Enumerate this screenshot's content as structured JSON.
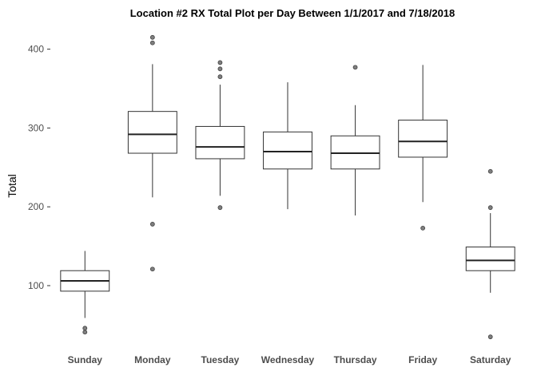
{
  "chart_data": {
    "type": "box",
    "title": "Location #2 RX Total Plot per Day Between 1/1/2017 and 7/18/2018",
    "xlabel": "",
    "ylabel": "Total",
    "ylim": [
      20,
      430
    ],
    "yticks": [
      100,
      200,
      300,
      400
    ],
    "grid": false,
    "categories": [
      "Sunday",
      "Monday",
      "Tuesday",
      "Wednesday",
      "Thursday",
      "Friday",
      "Saturday"
    ],
    "boxes": [
      {
        "category": "Sunday",
        "whisker_low": 59,
        "q1": 93,
        "median": 106,
        "q3": 119,
        "whisker_high": 144,
        "outliers": [
          41,
          46
        ]
      },
      {
        "category": "Monday",
        "whisker_low": 212,
        "q1": 268,
        "median": 292,
        "q3": 321,
        "whisker_high": 381,
        "outliers": [
          121,
          178,
          408,
          415
        ]
      },
      {
        "category": "Tuesday",
        "whisker_low": 214,
        "q1": 261,
        "median": 276,
        "q3": 302,
        "whisker_high": 355,
        "outliers": [
          199,
          365,
          375,
          383
        ]
      },
      {
        "category": "Wednesday",
        "whisker_low": 197,
        "q1": 248,
        "median": 270,
        "q3": 295,
        "whisker_high": 358,
        "outliers": []
      },
      {
        "category": "Thursday",
        "whisker_low": 189,
        "q1": 248,
        "median": 268,
        "q3": 290,
        "whisker_high": 329,
        "outliers": [
          377
        ]
      },
      {
        "category": "Friday",
        "whisker_low": 206,
        "q1": 263,
        "median": 283,
        "q3": 310,
        "whisker_high": 380,
        "outliers": [
          173
        ]
      },
      {
        "category": "Saturday",
        "whisker_low": 91,
        "q1": 119,
        "median": 132,
        "q3": 149,
        "whisker_high": 192,
        "outliers": [
          35,
          199,
          245
        ]
      }
    ],
    "colors": {
      "box_fill": "#ffffff",
      "box_stroke": "#333333",
      "outlier_fill": "#7f7f7f",
      "tick_text": "#4d4d4d"
    }
  }
}
